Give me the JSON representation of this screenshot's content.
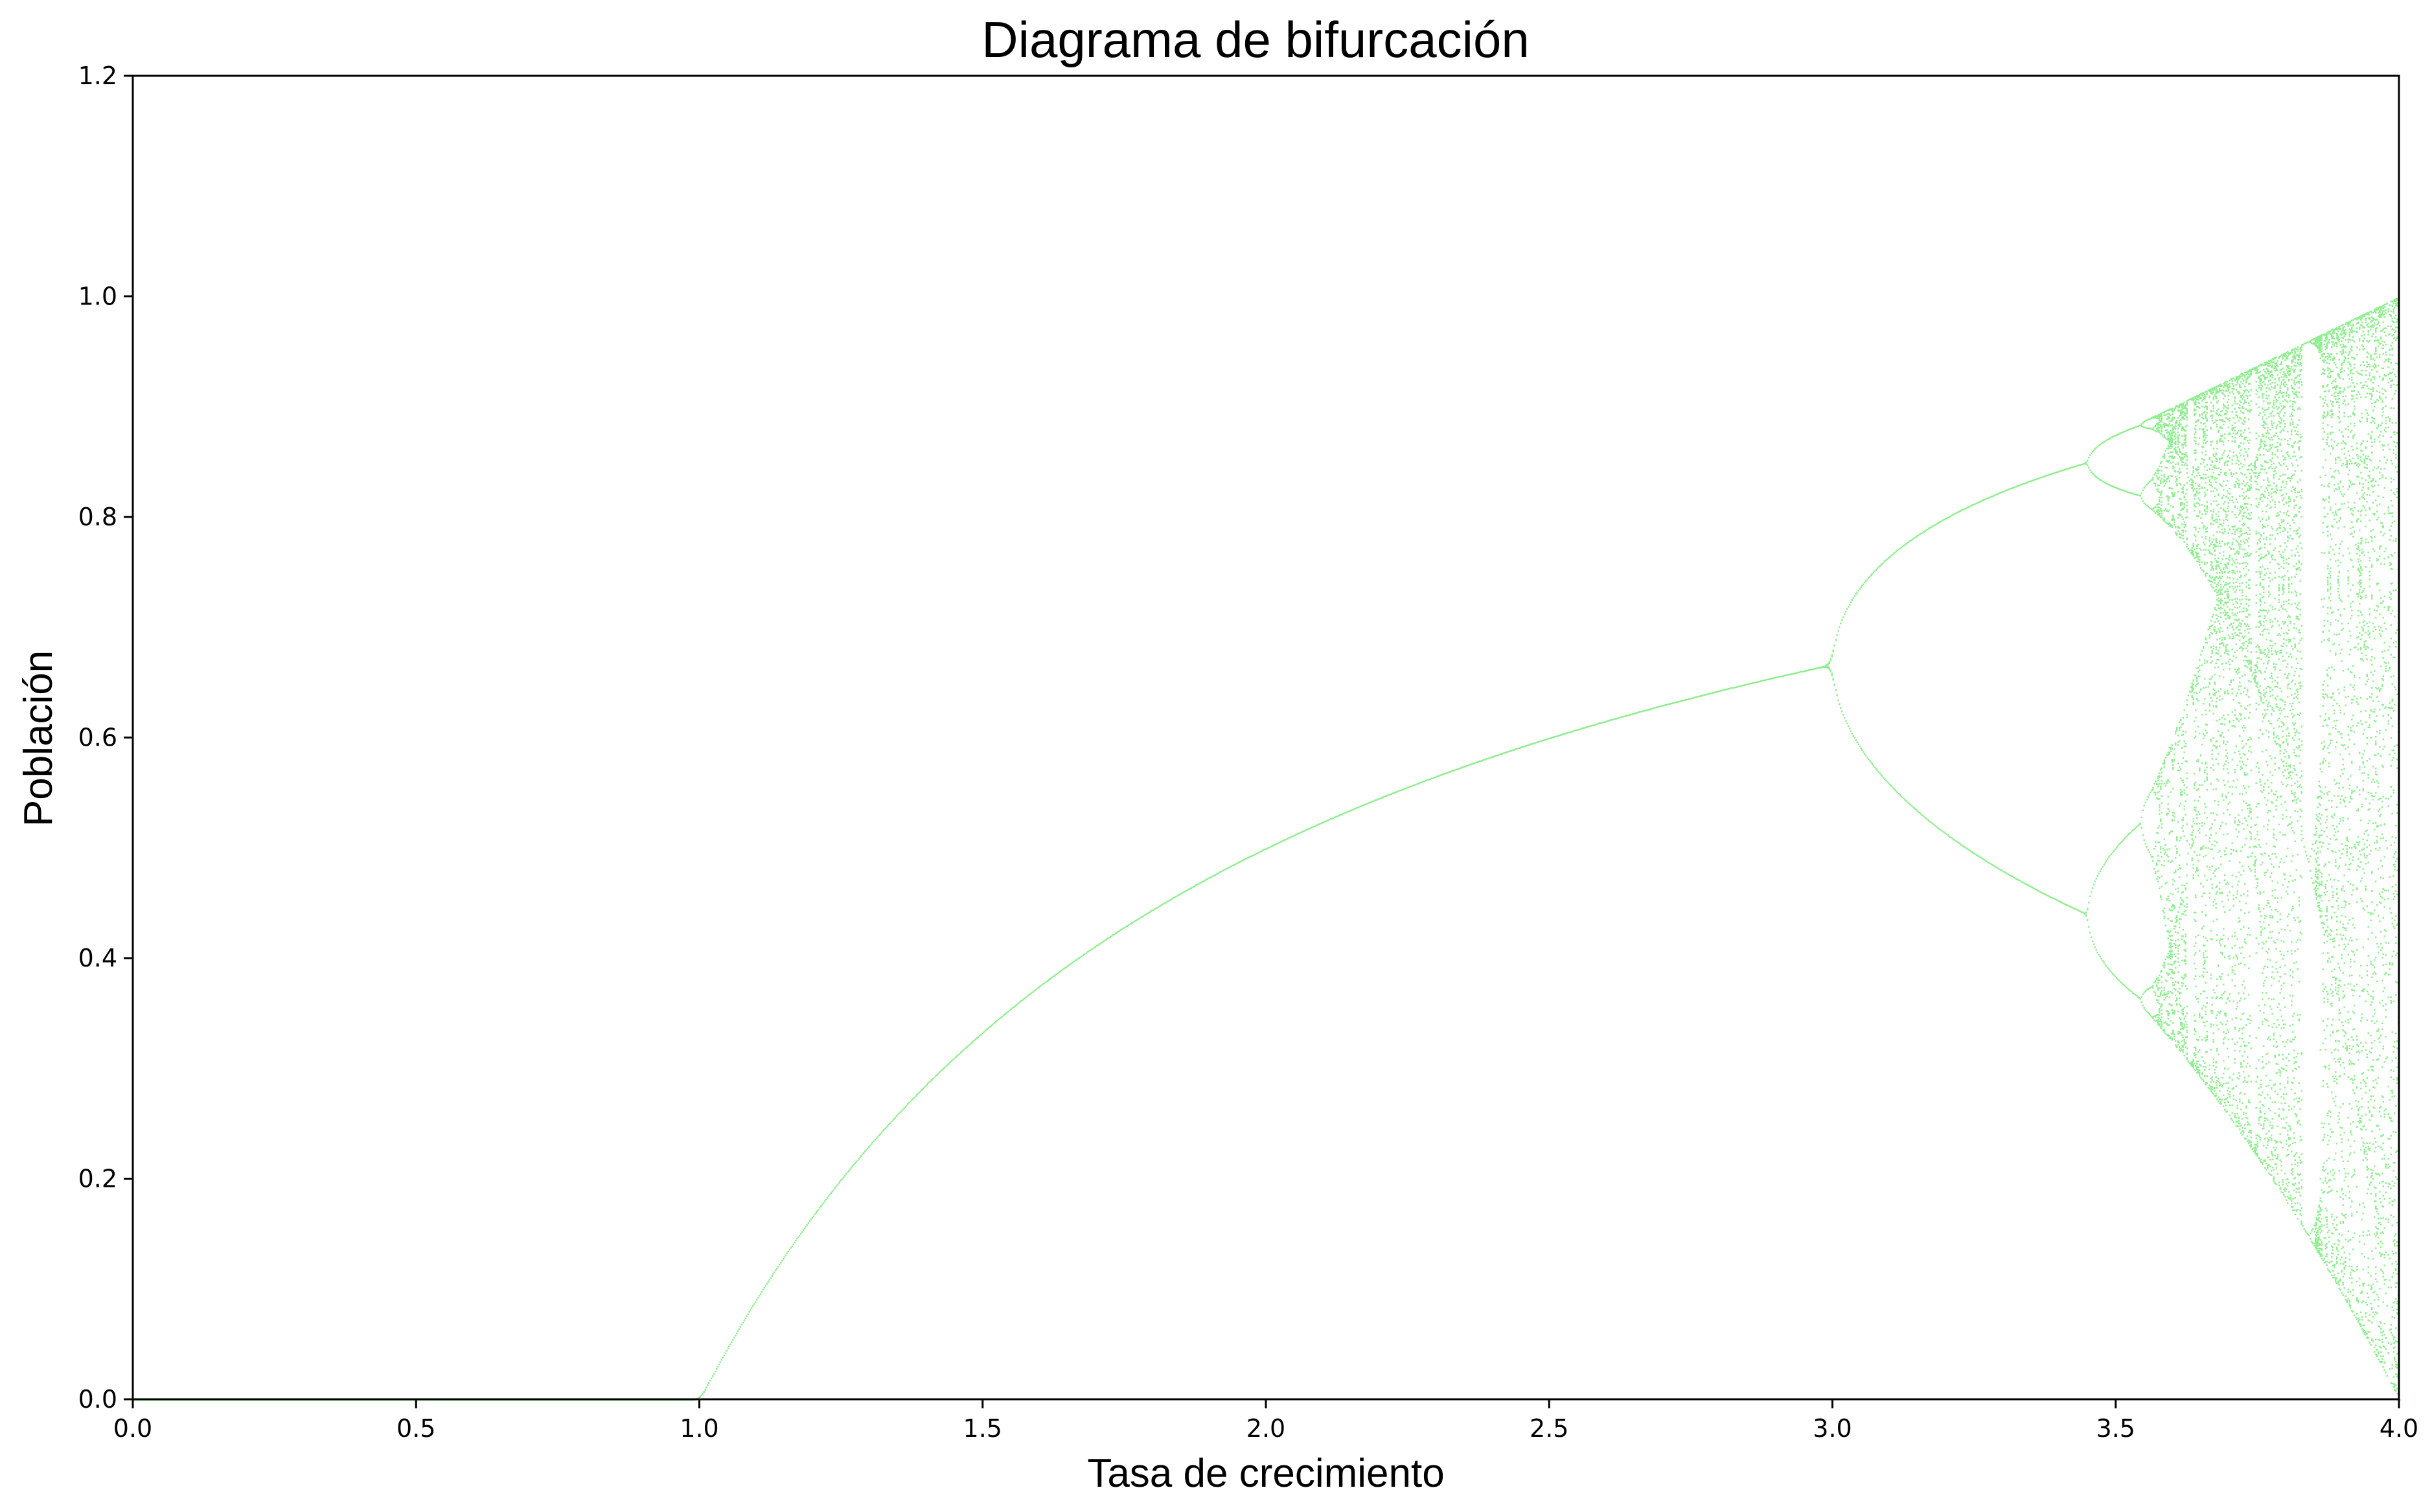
{
  "chart_data": {
    "type": "scatter",
    "title": "Diagrama de bifurcación",
    "xlabel": "Tasa de crecimiento",
    "ylabel": "Población",
    "xlim": [
      0.0,
      4.0
    ],
    "ylim": [
      0.0,
      1.2
    ],
    "x_ticks": [
      "0.0",
      "0.5",
      "1.0",
      "1.5",
      "2.0",
      "2.5",
      "3.0",
      "3.5",
      "4.0"
    ],
    "y_ticks": [
      "0.0",
      "0.2",
      "0.4",
      "0.6",
      "0.8",
      "1.0",
      "1.2"
    ],
    "x_tick_values": [
      0.0,
      0.5,
      1.0,
      1.5,
      2.0,
      2.5,
      3.0,
      3.5,
      4.0
    ],
    "y_tick_values": [
      0.0,
      0.2,
      0.4,
      0.6,
      0.8,
      1.0,
      1.2
    ],
    "marker_color": "#90ee90",
    "series_function": "logistic map x_{n+1} = r * x_n * (1 - x_n)",
    "r_range": [
      0.0,
      4.0
    ],
    "grid": false,
    "legend": false
  }
}
